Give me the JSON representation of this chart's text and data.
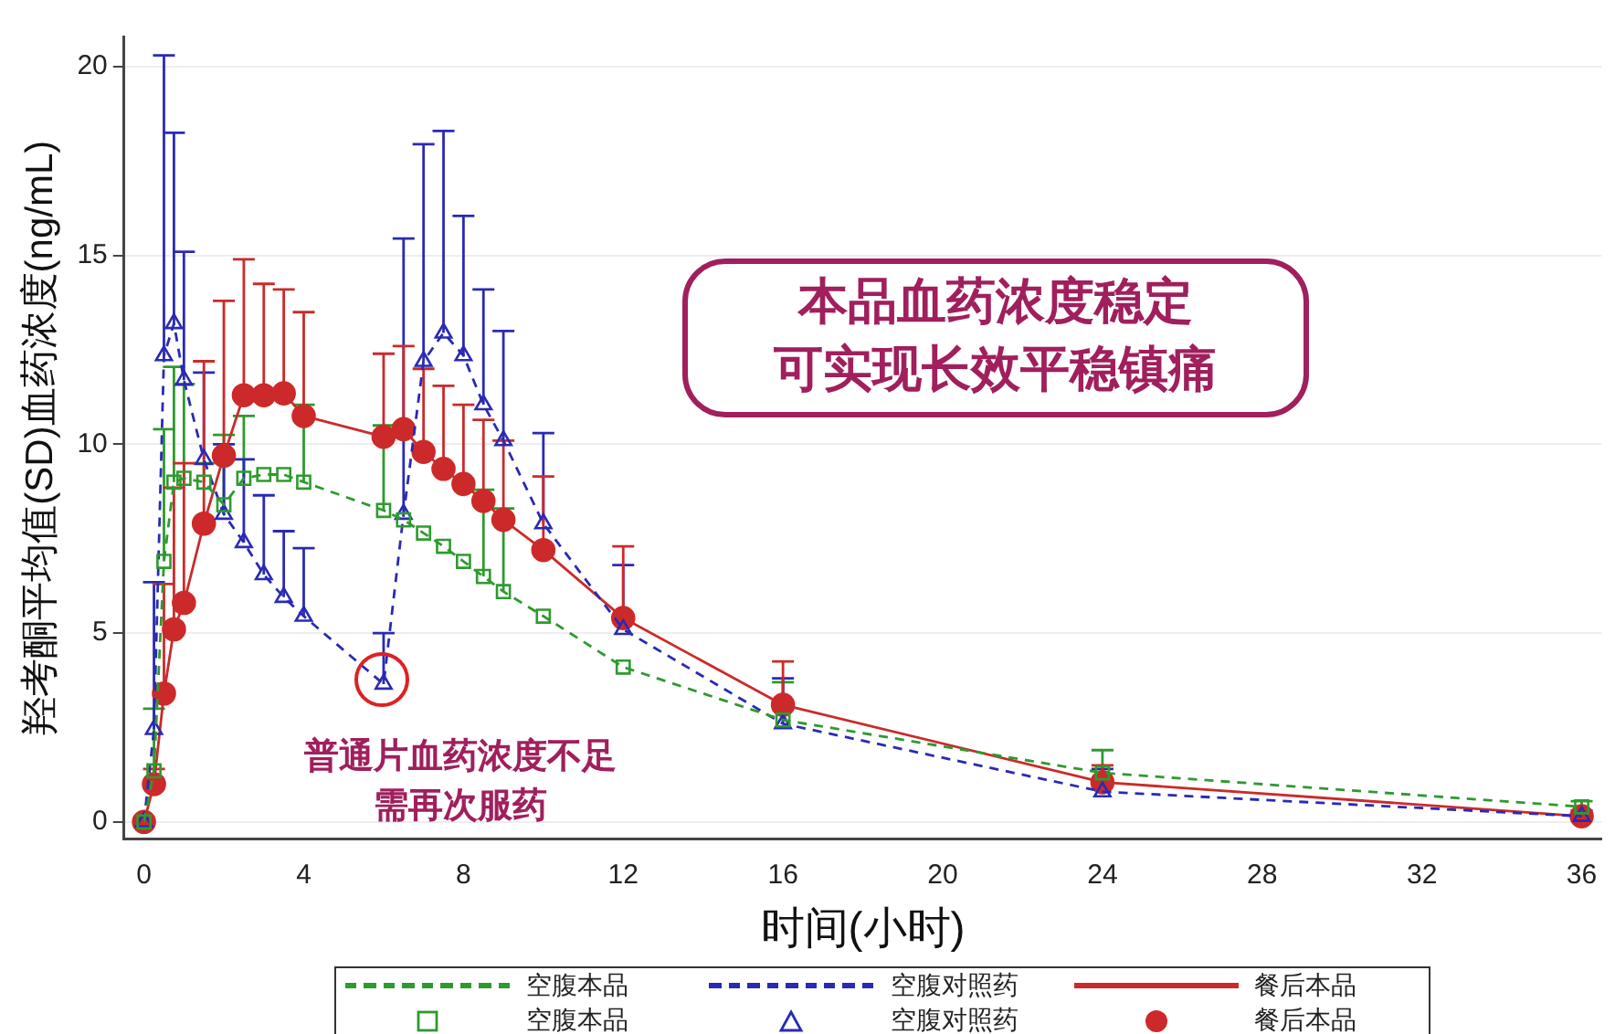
{
  "chart_data": {
    "type": "line",
    "xlabel": "时间(小时)",
    "ylabel": "羟考酮平均值(SD)血药浓度(ng/mL)",
    "x": [
      0,
      0.25,
      0.5,
      0.75,
      1,
      1.5,
      2,
      2.5,
      3,
      3.5,
      4,
      6,
      6.5,
      7,
      7.5,
      8,
      8.5,
      9,
      10,
      12,
      16,
      24,
      36
    ],
    "xlim": [
      -0.5,
      36.5
    ],
    "xticks": [
      0,
      4,
      8,
      12,
      16,
      20,
      24,
      28,
      32,
      36
    ],
    "ylim": [
      -0.45,
      20.8
    ],
    "yticks": [
      0,
      5,
      10,
      15,
      20
    ],
    "grid": "y",
    "legend": "bottom",
    "series": [
      {
        "name": "空腹本品",
        "color": "#2e9a2e",
        "line_style": "dashed",
        "marker": "square",
        "values": [
          0,
          1.35,
          6.9,
          9.0,
          9.1,
          9.0,
          8.4,
          9.1,
          9.2,
          9.2,
          9.0,
          8.25,
          8.0,
          7.65,
          7.3,
          6.9,
          6.5,
          6.1,
          5.45,
          4.1,
          2.7,
          1.3,
          0.4
        ],
        "errors": [
          null,
          [
            1.35,
            3.0
          ],
          [
            6.9,
            10.4
          ],
          [
            9.0,
            12.05
          ],
          [
            9.1,
            11.6
          ],
          [
            9.0,
            9.5
          ],
          [
            8.4,
            10.25
          ],
          [
            9.1,
            10.75
          ],
          null,
          null,
          [
            9.0,
            11.05
          ],
          [
            8.25,
            10.5
          ],
          null,
          null,
          null,
          null,
          [
            6.5,
            8.8
          ],
          [
            6.1,
            8.3
          ],
          null,
          null,
          [
            2.7,
            3.7
          ],
          [
            1.3,
            1.9
          ],
          [
            0.4,
            0.55
          ]
        ]
      },
      {
        "name": "空腹对照药",
        "color": "#2a2ab4",
        "line_style": "dashed",
        "marker": "triangle",
        "values": [
          0,
          2.45,
          12.35,
          13.2,
          11.7,
          9.6,
          8.15,
          7.4,
          6.55,
          5.95,
          5.45,
          3.65,
          8.15,
          12.2,
          12.95,
          12.35,
          11.05,
          10.1,
          7.9,
          5.1,
          2.6,
          0.8,
          0.15
        ],
        "errors": [
          null,
          [
            2.45,
            6.35
          ],
          [
            12.35,
            20.3
          ],
          [
            13.2,
            18.25
          ],
          [
            11.7,
            15.1
          ],
          [
            9.6,
            11.9
          ],
          [
            8.15,
            10.0
          ],
          [
            7.4,
            9.6
          ],
          [
            6.55,
            8.65
          ],
          [
            5.95,
            7.7
          ],
          [
            5.45,
            7.25
          ],
          [
            3.65,
            5.0
          ],
          [
            8.15,
            15.45
          ],
          [
            12.2,
            17.95
          ],
          [
            12.95,
            18.3
          ],
          [
            12.35,
            16.05
          ],
          [
            11.05,
            14.1
          ],
          [
            10.1,
            13.0
          ],
          [
            7.9,
            10.3
          ],
          [
            5.1,
            6.8
          ],
          [
            2.6,
            3.8
          ],
          [
            0.8,
            1.4
          ],
          [
            0.15,
            0.3
          ]
        ]
      },
      {
        "name": "餐后本品",
        "color": "#cc2a2a",
        "line_style": "solid",
        "marker": "circle",
        "values": [
          0,
          1.0,
          3.4,
          5.1,
          5.8,
          7.9,
          9.7,
          11.3,
          11.3,
          11.35,
          10.75,
          10.2,
          10.4,
          9.8,
          9.35,
          8.95,
          8.5,
          8.0,
          7.2,
          5.4,
          3.1,
          1.05,
          0.15
        ],
        "errors": [
          null,
          [
            1.0,
            1.4
          ],
          [
            3.4,
            6.3
          ],
          [
            5.1,
            8.85
          ],
          [
            5.8,
            9.5
          ],
          [
            7.9,
            12.2
          ],
          [
            9.7,
            13.8
          ],
          [
            11.3,
            14.9
          ],
          [
            11.3,
            14.25
          ],
          [
            11.35,
            14.1
          ],
          [
            10.75,
            13.5
          ],
          [
            10.2,
            12.4
          ],
          [
            10.4,
            12.6
          ],
          [
            9.8,
            12.0
          ],
          [
            9.35,
            11.55
          ],
          [
            8.95,
            11.05
          ],
          [
            8.5,
            10.65
          ],
          [
            8.0,
            10.1
          ],
          [
            7.2,
            9.15
          ],
          [
            5.4,
            7.3
          ],
          [
            3.1,
            4.25
          ],
          [
            1.05,
            1.5
          ],
          null
        ]
      }
    ],
    "annotations": [
      "本品血药浓度稳定可实现长效平稳镇痛",
      "普通片血药浓度不足需再次服药"
    ]
  }
}
